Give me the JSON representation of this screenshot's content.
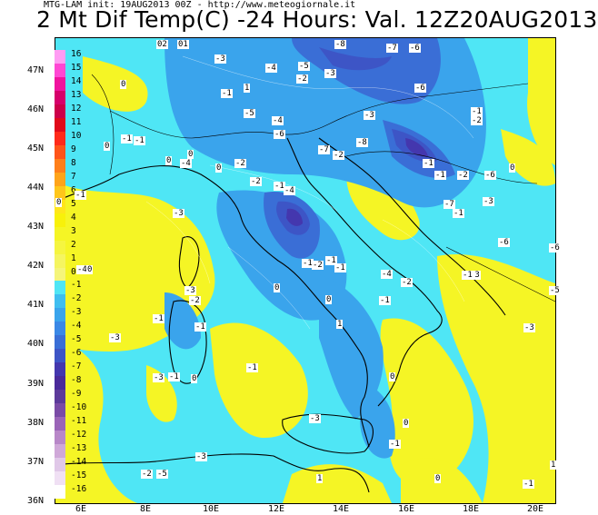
{
  "header": {
    "meta": "MTG-LAM init: 19AUG2013 00Z - http://www.meteogiornale.it",
    "title": "2 Mt Dif Temp(C) -24 Hours: Val. 12Z20AUG2013"
  },
  "axes": {
    "lat_labels": [
      "47N",
      "46N",
      "45N",
      "44N",
      "43N",
      "42N",
      "41N",
      "40N",
      "39N",
      "38N",
      "37N",
      "36N"
    ],
    "lon_labels": [
      "6E",
      "8E",
      "10E",
      "12E",
      "14E",
      "16E",
      "18E",
      "20E"
    ]
  },
  "colorbar": {
    "levels": [
      "16",
      "15",
      "14",
      "13",
      "12",
      "11",
      "10",
      "9",
      "8",
      "7",
      "6",
      "5",
      "4",
      "3",
      "2",
      "1",
      "0",
      "-1",
      "-2",
      "-3",
      "-4",
      "-5",
      "-6",
      "-7",
      "-8",
      "-9",
      "-10",
      "-11",
      "-12",
      "-13",
      "-14",
      "-15",
      "-16"
    ],
    "colors": [
      "#ff9cf3",
      "#ff47d3",
      "#f0139e",
      "#d6006b",
      "#cc004a",
      "#e00a1a",
      "#ff2a1a",
      "#ff5419",
      "#ff7f1a",
      "#ffa41a",
      "#ffc61a",
      "#ffe61a",
      "#f8f10a",
      "#f5f525",
      "#f5f540",
      "#f5f560",
      "#f5f57a",
      "#4fe6f5",
      "#3fbef0",
      "#3aa4ec",
      "#3a88e6",
      "#3a6ed6",
      "#3d55c6",
      "#4437ae",
      "#4a2a9a",
      "#5c3a9a",
      "#7a4ba6",
      "#9a64b8",
      "#b887c8",
      "#cfa8d8",
      "#e0c8e8",
      "#f0e0f4",
      "#ffffff"
    ]
  },
  "value_labels": [
    "-2",
    "-1",
    "-8",
    "-7",
    "-6",
    "-3",
    "-4",
    "-5",
    "-3",
    "-2",
    "0",
    "1",
    "-1",
    "-6",
    "-1",
    "-2",
    "-3",
    "-4",
    "-5",
    "-6",
    "-7",
    "-8",
    "-2",
    "-1",
    "0",
    "-3",
    "-2",
    "-1",
    "-4",
    "-1",
    "-2",
    "-6",
    "-7",
    "-1",
    "-6",
    "-6",
    "-5",
    "-3",
    "-3",
    "-2",
    "-4",
    "-1",
    "-1",
    "-2",
    "-1",
    "0",
    "1",
    "-1",
    "0",
    "-2",
    "-1",
    "-1",
    "0",
    "-1",
    "0",
    "-3",
    "-3",
    "-3",
    "-2",
    "-5",
    "-3",
    "0",
    "-1",
    "1",
    "0",
    "-1",
    "1",
    "-1",
    "0",
    "-2",
    "0",
    "-4",
    "-1",
    "0",
    "-1",
    "0",
    "0",
    "-1",
    "-3",
    "-4",
    "0",
    "-1",
    "-3",
    "0",
    "0",
    "0"
  ]
}
